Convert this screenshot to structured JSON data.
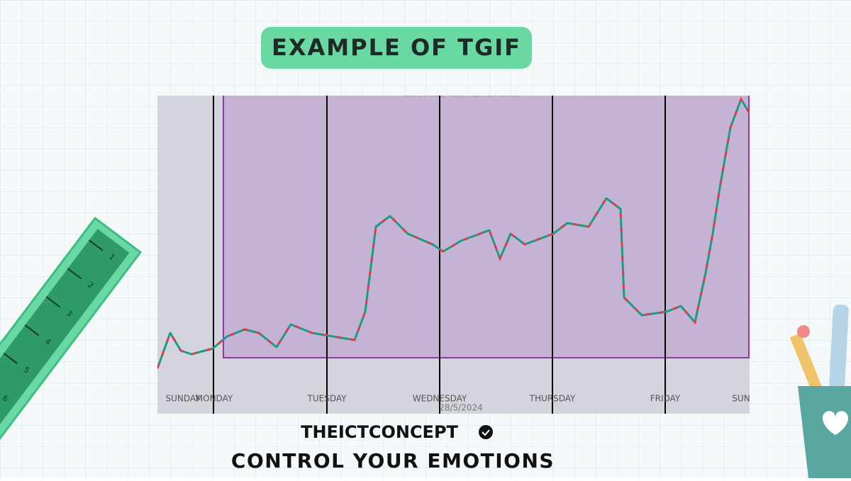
{
  "header": {
    "title": "EXAMPLE OF TGIF"
  },
  "chart": {
    "top_caption": "CONTROL YOUR EMOTIONS",
    "date": "28/5/2024",
    "days": [
      "SUNDAY",
      "MONDAY",
      "TUESDAY",
      "WEDNESDAY",
      "THURSDAY",
      "FRIDAY",
      "SUN"
    ]
  },
  "footer": {
    "brand": "THEICTCONCEPT",
    "slogan": "CONTROL YOUR EMOTIONS"
  },
  "ruler": {
    "marks": [
      "1",
      "2",
      "3",
      "4",
      "5",
      "6"
    ]
  }
}
